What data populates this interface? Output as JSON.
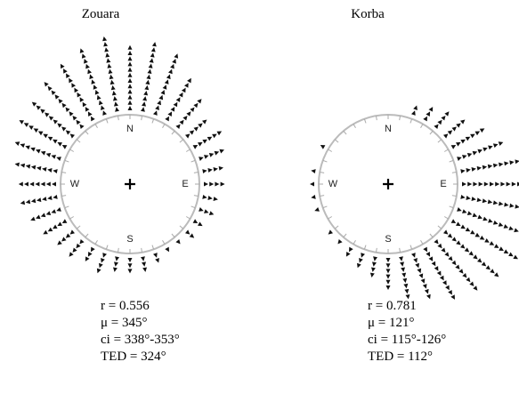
{
  "chart_data": [
    {
      "type": "circular",
      "title": "Zouara",
      "axis_labels": [
        "N",
        "E",
        "S",
        "W"
      ],
      "x": [
        0,
        10,
        20,
        30,
        40,
        50,
        60,
        70,
        80,
        90,
        100,
        110,
        120,
        130,
        140,
        150,
        160,
        170,
        180,
        190,
        200,
        210,
        220,
        230,
        240,
        250,
        260,
        270,
        280,
        290,
        300,
        310,
        320,
        330,
        340,
        350
      ],
      "values": [
        12,
        13,
        12,
        9,
        7,
        5,
        6,
        5,
        4,
        4,
        3,
        3,
        2,
        2,
        1,
        1,
        2,
        3,
        3,
        3,
        4,
        3,
        4,
        4,
        5,
        6,
        7,
        7,
        8,
        9,
        10,
        10,
        11,
        12,
        13,
        14
      ],
      "stats": [
        "r = 0.556",
        "μ = 345°",
        "ci = 338°-353°",
        "TED = 324°"
      ]
    },
    {
      "type": "circular",
      "title": "Korba",
      "axis_labels": [
        "N",
        "E",
        "S",
        "W"
      ],
      "x": [
        0,
        10,
        20,
        30,
        40,
        50,
        60,
        70,
        80,
        90,
        100,
        110,
        120,
        130,
        140,
        150,
        160,
        170,
        180,
        190,
        200,
        210,
        220,
        230,
        240,
        250,
        260,
        270,
        280,
        290,
        300,
        310,
        320,
        330,
        340,
        350
      ],
      "values": [
        0,
        0,
        2,
        3,
        4,
        5,
        7,
        9,
        11,
        12,
        13,
        14,
        14,
        13,
        12,
        11,
        9,
        8,
        6,
        4,
        3,
        2,
        1,
        1,
        0,
        1,
        1,
        1,
        1,
        0,
        1,
        0,
        0,
        0,
        0,
        0
      ],
      "stats": [
        "r = 0.781",
        "μ = 121°",
        "ci = 115°-126°",
        "TED = 112°"
      ]
    }
  ]
}
